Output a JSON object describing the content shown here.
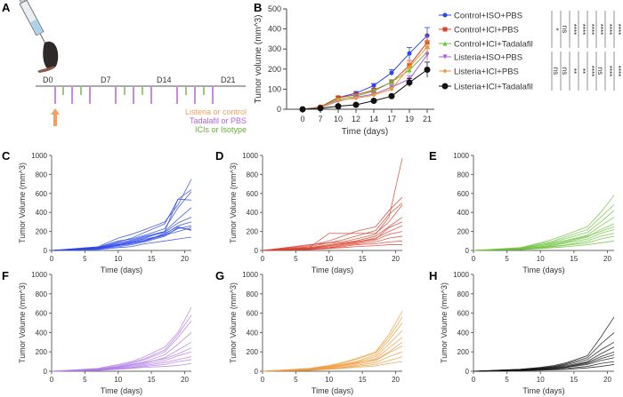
{
  "panel_labels": [
    "A",
    "B",
    "C",
    "D",
    "E",
    "F",
    "G",
    "H"
  ],
  "panel_a": {
    "days": [
      "D0",
      "D7",
      "D14",
      "D21"
    ],
    "legend": [
      {
        "text": "Listeria or control",
        "color": "#f0a060"
      },
      {
        "text": "Tadalafil or PBS",
        "color": "#b463d6"
      },
      {
        "text": "ICIs or Isotype",
        "color": "#6aab3a"
      }
    ]
  },
  "chart_data": [
    {
      "panel": "B",
      "type": "line",
      "xlabel": "Time (days)",
      "ylabel": "Tumor volume (mm^3)",
      "categories": [
        "0",
        "7",
        "10",
        "12",
        "14",
        "17",
        "19",
        "21"
      ],
      "ylim": [
        0,
        500
      ],
      "yticks": [
        0,
        100,
        200,
        300,
        400,
        500
      ],
      "legend": "right",
      "series": [
        {
          "name": "Control+ISO+PBS",
          "color": "#2a45e8",
          "marker": "circle",
          "values": [
            0,
            10,
            58,
            80,
            118,
            182,
            278,
            367
          ],
          "err": [
            0,
            3,
            6,
            8,
            10,
            15,
            30,
            40
          ]
        },
        {
          "name": "Control+ICI+PBS",
          "color": "#d9412e",
          "marker": "square",
          "values": [
            0,
            12,
            58,
            72,
            95,
            135,
            218,
            333
          ],
          "err": [
            0,
            3,
            6,
            8,
            10,
            12,
            25,
            35
          ]
        },
        {
          "name": "Control+ICI+Tadalafil",
          "color": "#6cc23a",
          "marker": "triangle-up",
          "values": [
            0,
            10,
            50,
            65,
            90,
            135,
            195,
            285
          ],
          "err": [
            0,
            3,
            5,
            7,
            9,
            12,
            20,
            30
          ]
        },
        {
          "name": "Listeria+ISO+PBS",
          "color": "#a95ee0",
          "marker": "triangle-down",
          "values": [
            0,
            8,
            40,
            60,
            75,
            110,
            150,
            272
          ],
          "err": [
            0,
            3,
            5,
            6,
            8,
            10,
            18,
            30
          ]
        },
        {
          "name": "Listeria+ICI+PBS",
          "color": "#f0982e",
          "marker": "diamond",
          "values": [
            0,
            8,
            45,
            55,
            70,
            100,
            210,
            310
          ],
          "err": [
            0,
            3,
            5,
            6,
            8,
            10,
            20,
            30
          ]
        },
        {
          "name": "Listeria+ICI+Tadalafil",
          "color": "#111111",
          "marker": "circle",
          "values": [
            0,
            5,
            15,
            22,
            42,
            65,
            133,
            197
          ],
          "err": [
            0,
            2,
            4,
            5,
            6,
            8,
            20,
            38
          ]
        }
      ],
      "significance": [
        "*",
        "ns",
        "ns",
        "ns",
        "****",
        "**",
        "****",
        "**",
        "****",
        "****",
        "****",
        "ns",
        "****",
        "****",
        "****",
        "****"
      ]
    },
    {
      "panel": "C",
      "type": "line",
      "color": "#2a45e8",
      "xlabel": "Time (days)",
      "ylabel": "Tumor Volume (mm^3)",
      "x": [
        0,
        7,
        10,
        12,
        14,
        17,
        19,
        21
      ],
      "xticks": [
        0,
        5,
        10,
        15,
        20
      ],
      "ylim": [
        0,
        1000
      ],
      "yticks": [
        0,
        200,
        400,
        600,
        800,
        1000
      ],
      "series": [
        [
          0,
          40,
          130,
          170,
          220,
          300,
          480,
          750
        ],
        [
          0,
          30,
          90,
          130,
          190,
          280,
          540,
          640
        ],
        [
          0,
          35,
          100,
          120,
          160,
          230,
          450,
          620
        ],
        [
          0,
          25,
          80,
          110,
          150,
          200,
          540,
          530
        ],
        [
          0,
          20,
          60,
          90,
          130,
          200,
          330,
          450
        ],
        [
          0,
          30,
          70,
          100,
          140,
          190,
          290,
          350
        ],
        [
          0,
          25,
          60,
          80,
          110,
          170,
          260,
          300
        ],
        [
          0,
          20,
          55,
          80,
          100,
          160,
          230,
          260
        ],
        [
          0,
          15,
          40,
          60,
          90,
          150,
          240,
          220
        ],
        [
          0,
          20,
          50,
          70,
          100,
          180,
          250,
          210
        ],
        [
          0,
          10,
          30,
          40,
          70,
          100,
          120,
          140
        ],
        [
          0,
          20,
          60,
          90,
          120,
          160,
          200,
          240
        ]
      ]
    },
    {
      "panel": "D",
      "type": "line",
      "color": "#d9412e",
      "xlabel": "Time (days)",
      "ylabel": "Tumor Volume (mm^3)",
      "x": [
        0,
        7,
        10,
        12,
        14,
        17,
        19,
        21
      ],
      "xticks": [
        0,
        5,
        10,
        15,
        20
      ],
      "ylim": [
        0,
        1000
      ],
      "yticks": [
        0,
        200,
        400,
        600,
        800,
        1000
      ],
      "series": [
        [
          0,
          60,
          80,
          90,
          120,
          170,
          350,
          970
        ],
        [
          0,
          50,
          100,
          150,
          200,
          250,
          420,
          560
        ],
        [
          0,
          40,
          80,
          110,
          150,
          210,
          380,
          500
        ],
        [
          0,
          30,
          180,
          180,
          180,
          180,
          300,
          480
        ],
        [
          0,
          30,
          60,
          80,
          100,
          150,
          250,
          350
        ],
        [
          0,
          25,
          50,
          70,
          90,
          130,
          200,
          260
        ],
        [
          0,
          20,
          40,
          60,
          80,
          110,
          170,
          200
        ],
        [
          0,
          15,
          30,
          50,
          70,
          90,
          130,
          150
        ],
        [
          0,
          10,
          25,
          40,
          60,
          70,
          90,
          100
        ],
        [
          0,
          10,
          20,
          30,
          40,
          50,
          60,
          60
        ],
        [
          0,
          20,
          50,
          70,
          90,
          120,
          240,
          300
        ]
      ]
    },
    {
      "panel": "E",
      "type": "line",
      "color": "#6cc23a",
      "xlabel": "Time (days)",
      "ylabel": "",
      "x": [
        0,
        7,
        10,
        12,
        14,
        17,
        19,
        21
      ],
      "xticks": [
        0,
        5,
        10,
        15,
        20
      ],
      "ylim": [
        0,
        1000
      ],
      "yticks": [
        0,
        200,
        400,
        600,
        800,
        1000
      ],
      "series": [
        [
          0,
          30,
          80,
          120,
          170,
          250,
          400,
          580
        ],
        [
          0,
          25,
          70,
          100,
          150,
          220,
          350,
          480
        ],
        [
          0,
          20,
          60,
          90,
          130,
          190,
          300,
          420
        ],
        [
          0,
          20,
          50,
          80,
          110,
          160,
          260,
          350
        ],
        [
          0,
          15,
          40,
          60,
          90,
          140,
          220,
          280
        ],
        [
          0,
          15,
          35,
          55,
          80,
          120,
          180,
          220
        ],
        [
          0,
          10,
          30,
          45,
          60,
          100,
          150,
          180
        ],
        [
          0,
          10,
          25,
          40,
          55,
          80,
          120,
          150
        ],
        [
          0,
          8,
          20,
          30,
          40,
          60,
          80,
          100
        ],
        [
          0,
          20,
          50,
          70,
          100,
          150,
          200,
          250
        ]
      ]
    },
    {
      "panel": "F",
      "type": "line",
      "color": "#b17be8",
      "xlabel": "Time (days)",
      "ylabel": "Tumor Volume (mm^3)",
      "x": [
        0,
        7,
        10,
        12,
        14,
        17,
        19,
        21
      ],
      "xticks": [
        0,
        5,
        10,
        15,
        20
      ],
      "ylim": [
        0,
        1000
      ],
      "yticks": [
        0,
        200,
        400,
        600,
        800,
        1000
      ],
      "series": [
        [
          0,
          30,
          70,
          100,
          150,
          250,
          400,
          660
        ],
        [
          0,
          25,
          60,
          90,
          130,
          220,
          380,
          580
        ],
        [
          0,
          20,
          50,
          80,
          120,
          200,
          350,
          520
        ],
        [
          0,
          20,
          45,
          70,
          100,
          170,
          280,
          400
        ],
        [
          0,
          15,
          40,
          60,
          80,
          140,
          220,
          300
        ],
        [
          0,
          15,
          35,
          50,
          70,
          110,
          160,
          200
        ],
        [
          0,
          10,
          30,
          40,
          60,
          90,
          120,
          150
        ],
        [
          0,
          10,
          25,
          35,
          50,
          70,
          100,
          120
        ],
        [
          0,
          8,
          20,
          30,
          40,
          50,
          60,
          80
        ],
        [
          0,
          20,
          45,
          65,
          90,
          130,
          180,
          240
        ]
      ]
    },
    {
      "panel": "G",
      "type": "line",
      "color": "#ef9a3c",
      "xlabel": "Time (days)",
      "ylabel": "Tumor Volume (mm^3)",
      "x": [
        0,
        7,
        10,
        12,
        14,
        17,
        19,
        21
      ],
      "xticks": [
        0,
        5,
        10,
        15,
        20
      ],
      "ylim": [
        0,
        1000
      ],
      "yticks": [
        0,
        200,
        400,
        600,
        800,
        1000
      ],
      "series": [
        [
          0,
          30,
          60,
          90,
          130,
          200,
          380,
          620
        ],
        [
          0,
          25,
          55,
          80,
          120,
          190,
          350,
          560
        ],
        [
          0,
          20,
          50,
          70,
          100,
          170,
          320,
          500
        ],
        [
          0,
          20,
          45,
          65,
          90,
          150,
          280,
          420
        ],
        [
          0,
          15,
          40,
          60,
          80,
          130,
          240,
          350
        ],
        [
          0,
          15,
          35,
          50,
          70,
          110,
          190,
          260
        ],
        [
          0,
          10,
          30,
          40,
          60,
          90,
          150,
          200
        ],
        [
          0,
          10,
          25,
          35,
          50,
          70,
          110,
          150
        ],
        [
          0,
          8,
          20,
          30,
          40,
          55,
          80,
          100
        ],
        [
          0,
          20,
          40,
          60,
          85,
          120,
          200,
          300
        ]
      ]
    },
    {
      "panel": "H",
      "type": "line",
      "color": "#111111",
      "xlabel": "Time (days)",
      "ylabel": "Tumor Volume (mm^3)",
      "x": [
        0,
        7,
        10,
        12,
        14,
        17,
        19,
        21
      ],
      "xticks": [
        0,
        5,
        10,
        15,
        20
      ],
      "ylim": [
        0,
        1000
      ],
      "yticks": [
        0,
        200,
        400,
        600,
        800,
        1000
      ],
      "series": [
        [
          0,
          20,
          40,
          60,
          90,
          160,
          350,
          560
        ],
        [
          0,
          20,
          35,
          50,
          80,
          140,
          280,
          400
        ],
        [
          0,
          15,
          30,
          45,
          70,
          120,
          220,
          300
        ],
        [
          0,
          15,
          30,
          40,
          60,
          100,
          180,
          250
        ],
        [
          0,
          12,
          25,
          35,
          50,
          90,
          150,
          200
        ],
        [
          0,
          10,
          20,
          30,
          45,
          80,
          130,
          170
        ],
        [
          0,
          10,
          20,
          25,
          40,
          70,
          110,
          140
        ],
        [
          0,
          8,
          15,
          20,
          30,
          50,
          80,
          100
        ],
        [
          0,
          5,
          10,
          15,
          20,
          35,
          50,
          70
        ]
      ]
    }
  ]
}
